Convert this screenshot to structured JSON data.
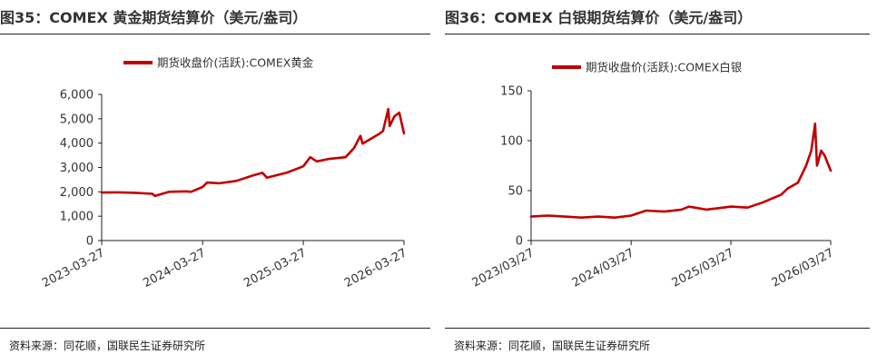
{
  "charts": [
    {
      "title": "图35：COMEX 黄金期货结算价（美元/盎司）",
      "source": "资料来源：同花顺，国联民生证券研究所"
    },
    {
      "title": "图36：COMEX 白银期货结算价（美元/盎司）",
      "source": "资料来源：同花顺，国联民生证券研究所"
    }
  ],
  "colors": {
    "series": "#c00000",
    "axis": "#222222",
    "text": "#333333"
  },
  "chart_data": [
    {
      "type": "line",
      "title": "图35：COMEX 黄金期货结算价（美元/盎司）",
      "legend": "期货收盘价(活跃):COMEX黄金",
      "legend_position": "top-center",
      "series": [
        {
          "name": "期货收盘价(活跃):COMEX黄金",
          "x": [
            "2023-03-27",
            "2023-05-27",
            "2023-07-27",
            "2023-09-27",
            "2023-10-06",
            "2023-11-27",
            "2024-01-27",
            "2024-02-14",
            "2024-03-27",
            "2024-04-12",
            "2024-05-27",
            "2024-07-27",
            "2024-09-27",
            "2024-10-30",
            "2024-11-15",
            "2025-01-27",
            "2025-03-27",
            "2025-04-21",
            "2025-05-15",
            "2025-06-27",
            "2025-08-27",
            "2025-09-27",
            "2025-10-20",
            "2025-10-28",
            "2025-12-27",
            "2026-01-10",
            "2026-01-29",
            "2026-02-03",
            "2026-02-20",
            "2026-03-10",
            "2026-03-27"
          ],
          "y": [
            1970,
            1980,
            1960,
            1920,
            1830,
            2000,
            2020,
            2000,
            2200,
            2380,
            2350,
            2450,
            2680,
            2780,
            2580,
            2790,
            3050,
            3420,
            3250,
            3350,
            3420,
            3800,
            4300,
            3980,
            4380,
            4500,
            5400,
            4700,
            5100,
            5250,
            4400
          ]
        }
      ],
      "x_ticks": [
        "2023-03-27",
        "2024-03-27",
        "2025-03-27",
        "2026-03-27"
      ],
      "y_ticks": [
        "0",
        "1,000",
        "2,000",
        "3,000",
        "4,000",
        "5,000",
        "6,000"
      ],
      "ylim": [
        0,
        6000
      ],
      "xlim": [
        "2023-03-27",
        "2026-03-27"
      ],
      "grid": false
    },
    {
      "type": "line",
      "title": "图36：COMEX 白银期货结算价（美元/盎司）",
      "legend": "期货收盘价(活跃):COMEX白银",
      "legend_position": "top-center",
      "series": [
        {
          "name": "期货收盘价(活跃):COMEX白银",
          "x": [
            "2023/03/27",
            "2023/05/27",
            "2023/07/27",
            "2023/09/27",
            "2023/11/27",
            "2024/01/27",
            "2024/03/27",
            "2024/05/20",
            "2024/07/27",
            "2024/09/27",
            "2024/10/25",
            "2024/12/27",
            "2025/02/27",
            "2025/03/27",
            "2025/05/27",
            "2025/07/20",
            "2025/09/27",
            "2025/10/20",
            "2025/11/27",
            "2025/12/27",
            "2026/01/15",
            "2026/01/29",
            "2026/02/05",
            "2026/02/20",
            "2026/03/05",
            "2026/03/27"
          ],
          "y": [
            24,
            25,
            24,
            23,
            24,
            23,
            25,
            30,
            29,
            31,
            34,
            31,
            33,
            34,
            33,
            38,
            46,
            52,
            58,
            75,
            90,
            117,
            75,
            90,
            85,
            70
          ]
        }
      ],
      "x_ticks": [
        "2023/03/27",
        "2024/03/27",
        "2025/03/27",
        "2026/03/27"
      ],
      "y_ticks": [
        "0",
        "50",
        "100",
        "150"
      ],
      "ylim": [
        0,
        150
      ],
      "xlim": [
        "2023/03/27",
        "2026/03/27"
      ],
      "grid": false
    }
  ]
}
